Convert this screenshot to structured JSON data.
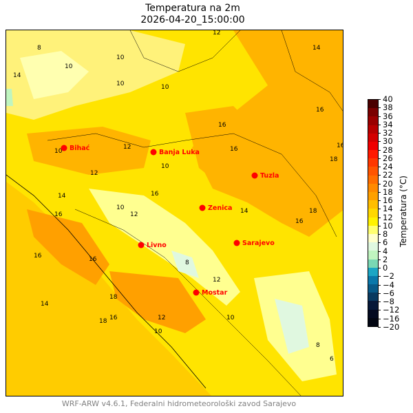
{
  "title": "Temperatura na 2m",
  "subtitle": "2026-04-20_15:00:00",
  "footer": "WRF-ARW v4.6.1, Federalni hidrometeorološki zavod Sarajevo",
  "colorbar": {
    "label": "Temperatura (°C)",
    "ticks": [
      "40",
      "38",
      "36",
      "34",
      "32",
      "30",
      "28",
      "26",
      "24",
      "22",
      "20",
      "18",
      "16",
      "14",
      "12",
      "10",
      "8",
      "6",
      "4",
      "2",
      "0",
      "−2",
      "−4",
      "−6",
      "−8",
      "−12",
      "−16",
      "−20"
    ],
    "colors": [
      "#4a0000",
      "#7a0000",
      "#9a0000",
      "#b80000",
      "#d40000",
      "#f00000",
      "#ff1a00",
      "#ff3800",
      "#ff5500",
      "#ff6e00",
      "#ff8a00",
      "#ffa000",
      "#ffbe00",
      "#ffd800",
      "#fff200",
      "#ffff70",
      "#ffffcc",
      "#e0f8e0",
      "#c0f5c0",
      "#7ad8b4",
      "#1ca6c4",
      "#0a78aa",
      "#085a88",
      "#0a3a60",
      "#061838",
      "#030a20",
      "#020612"
    ]
  },
  "cities": [
    {
      "name": "Bihać",
      "lon_px_hint": "nw"
    },
    {
      "name": "Banja Luka"
    },
    {
      "name": "Tuzla"
    },
    {
      "name": "Zenica"
    },
    {
      "name": "Livno"
    },
    {
      "name": "Sarajevo"
    },
    {
      "name": "Mostar"
    }
  ],
  "contour_labels": [
    "12",
    "14",
    "8",
    "10",
    "10",
    "10",
    "10",
    "16",
    "16",
    "16",
    "18",
    "14",
    "12",
    "10",
    "16",
    "14",
    "16",
    "12",
    "10",
    "16",
    "18",
    "16",
    "14",
    "12",
    "10",
    "8",
    "16",
    "18",
    "16",
    "14",
    "12",
    "10",
    "16",
    "18",
    "12",
    "10",
    "8",
    "6"
  ],
  "colors": {
    "city": "#ff0000",
    "sea": "#ffcc00",
    "warm": "#ffb400",
    "mild": "#ffe400",
    "cool": "#ffff90"
  }
}
